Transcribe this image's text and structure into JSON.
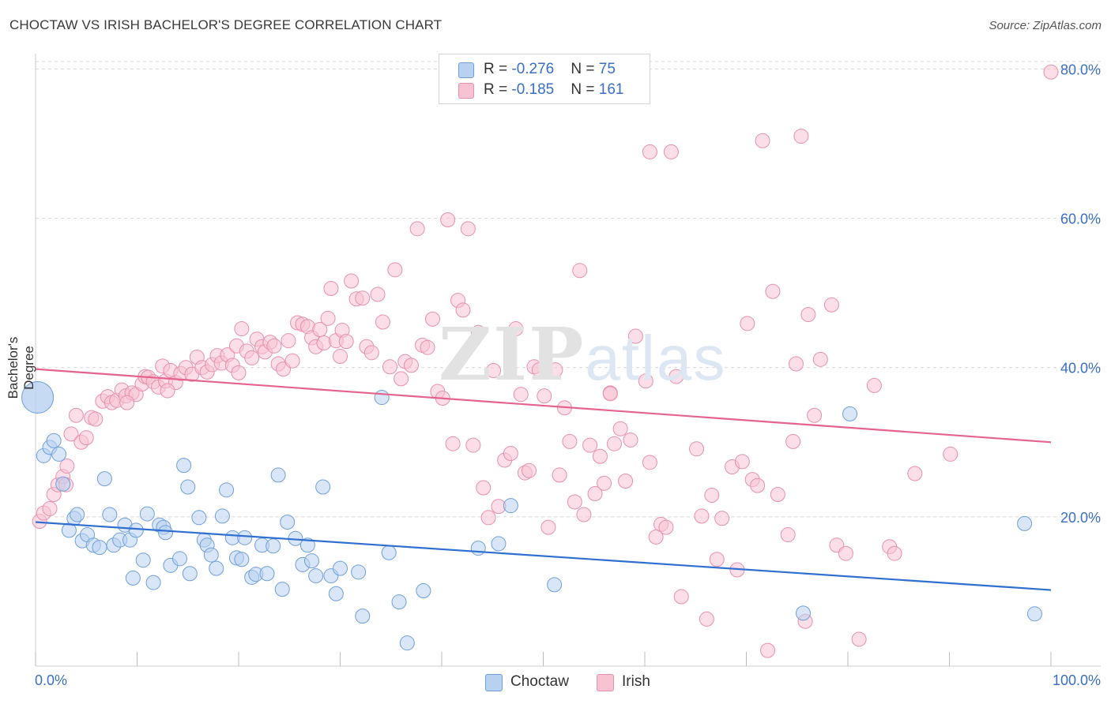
{
  "title": "CHOCTAW VS IRISH BACHELOR'S DEGREE CORRELATION CHART",
  "source": "Source: ZipAtlas.com",
  "watermark": {
    "zip": "ZIP",
    "atlas": "atlas"
  },
  "colors": {
    "choctaw_fill": "#b8d1f0",
    "choctaw_stroke": "#6f9fdb",
    "choctaw_line": "#2f6fd0",
    "irish_fill": "#f7c3d3",
    "irish_stroke": "#e690ad",
    "irish_line": "#e4648e",
    "axis_label": "#3a6fc4",
    "grid": "#d9d9d9"
  },
  "legend_top": [
    {
      "r_label": "R = ",
      "r_value": "-0.276",
      "n_label": "N = ",
      "n_value": "75"
    },
    {
      "r_label": "R = ",
      "r_value": "-0.185",
      "n_label": "N = ",
      "n_value": "161"
    }
  ],
  "legend_bottom": [
    "Choctaw",
    "Irish"
  ],
  "chart_data": {
    "type": "scatter",
    "title": "CHOCTAW VS IRISH BACHELOR'S DEGREE CORRELATION CHART",
    "xlabel": "",
    "ylabel": "Bachelor's Degree",
    "x_tick_labels": [
      "0.0%",
      "100.0%"
    ],
    "y_tick_labels": [
      "20.0%",
      "40.0%",
      "60.0%",
      "80.0%"
    ],
    "y_ticks": [
      20,
      40,
      60,
      80
    ],
    "xlim": [
      0,
      100
    ],
    "ylim": [
      0,
      81
    ],
    "grid": true,
    "series": [
      {
        "name": "Choctaw",
        "r": -0.276,
        "n": 75,
        "trend": {
          "x": [
            0,
            100
          ],
          "y": [
            19.3,
            10.2
          ]
        },
        "points": [
          [
            0.2,
            36,
            "big"
          ],
          [
            0.8,
            28.2
          ],
          [
            1.4,
            29.3
          ],
          [
            1.8,
            30.2
          ],
          [
            2.3,
            28.4
          ],
          [
            2.7,
            24.4
          ],
          [
            3.3,
            18.2
          ],
          [
            3.8,
            19.8
          ],
          [
            4.1,
            20.3
          ],
          [
            4.6,
            16.8
          ],
          [
            5.1,
            17.6
          ],
          [
            5.7,
            16.2
          ],
          [
            6.3,
            15.9
          ],
          [
            6.8,
            25.1
          ],
          [
            7.3,
            20.3
          ],
          [
            7.7,
            16.2
          ],
          [
            8.3,
            16.9
          ],
          [
            8.8,
            18.9
          ],
          [
            9.3,
            16.9
          ],
          [
            9.6,
            11.8
          ],
          [
            9.9,
            18.2
          ],
          [
            10.6,
            14.2
          ],
          [
            11.0,
            20.4
          ],
          [
            11.6,
            11.2
          ],
          [
            12.2,
            18.9
          ],
          [
            12.6,
            18.6
          ],
          [
            12.8,
            17.9
          ],
          [
            13.3,
            13.5
          ],
          [
            14.2,
            14.4
          ],
          [
            14.6,
            26.9
          ],
          [
            15.0,
            24.0
          ],
          [
            15.2,
            12.4
          ],
          [
            16.1,
            19.9
          ],
          [
            16.6,
            16.9
          ],
          [
            16.9,
            16.2
          ],
          [
            17.3,
            14.9
          ],
          [
            17.8,
            13.1
          ],
          [
            18.4,
            20.1
          ],
          [
            18.8,
            23.6
          ],
          [
            19.4,
            17.2
          ],
          [
            19.8,
            14.5
          ],
          [
            20.3,
            14.3
          ],
          [
            20.6,
            17.2
          ],
          [
            21.3,
            11.9
          ],
          [
            21.7,
            12.3
          ],
          [
            22.3,
            16.2
          ],
          [
            22.8,
            12.4
          ],
          [
            23.4,
            16.1
          ],
          [
            23.9,
            25.6
          ],
          [
            24.3,
            10.3
          ],
          [
            24.8,
            19.3
          ],
          [
            25.6,
            17.1
          ],
          [
            26.3,
            13.6
          ],
          [
            26.8,
            16.2
          ],
          [
            27.2,
            14.1
          ],
          [
            27.6,
            12.1
          ],
          [
            28.3,
            24.0
          ],
          [
            29.1,
            12.1
          ],
          [
            29.6,
            9.7
          ],
          [
            30.0,
            13.1
          ],
          [
            31.8,
            12.6
          ],
          [
            32.2,
            6.7
          ],
          [
            34.1,
            36.0
          ],
          [
            34.8,
            15.2
          ],
          [
            35.8,
            8.6
          ],
          [
            36.6,
            3.1
          ],
          [
            38.2,
            10.1
          ],
          [
            43.6,
            15.8
          ],
          [
            45.6,
            16.4
          ],
          [
            46.8,
            21.5
          ],
          [
            51.1,
            10.9
          ],
          [
            80.2,
            33.8
          ],
          [
            75.6,
            7.1
          ],
          [
            97.4,
            19.1
          ],
          [
            98.4,
            7.0
          ]
        ]
      },
      {
        "name": "Irish",
        "r": -0.185,
        "n": 161,
        "trend": {
          "x": [
            0,
            100
          ],
          "y": [
            39.8,
            30.0
          ]
        },
        "points": [
          [
            0.4,
            19.4
          ],
          [
            0.8,
            20.5
          ],
          [
            1.4,
            21.1
          ],
          [
            1.8,
            23.0
          ],
          [
            2.2,
            24.3
          ],
          [
            2.7,
            25.4
          ],
          [
            3.1,
            26.8
          ],
          [
            3.5,
            31.1
          ],
          [
            4.0,
            33.6
          ],
          [
            4.5,
            30.0
          ],
          [
            5.0,
            30.6
          ],
          [
            5.5,
            33.3
          ],
          [
            5.9,
            33.1
          ],
          [
            6.6,
            35.5
          ],
          [
            7.1,
            36.1
          ],
          [
            7.5,
            35.3
          ],
          [
            8.0,
            35.6
          ],
          [
            8.5,
            37.0
          ],
          [
            8.9,
            36.2
          ],
          [
            9.5,
            36.6
          ],
          [
            9.9,
            36.4
          ],
          [
            10.5,
            37.8
          ],
          [
            10.8,
            38.8
          ],
          [
            11.1,
            38.7
          ],
          [
            11.6,
            38.1
          ],
          [
            12.1,
            37.4
          ],
          [
            12.5,
            40.2
          ],
          [
            12.8,
            38.2
          ],
          [
            13.3,
            39.6
          ],
          [
            13.8,
            38.0
          ],
          [
            14.3,
            39.2
          ],
          [
            14.8,
            40.0
          ],
          [
            15.4,
            39.1
          ],
          [
            15.9,
            41.4
          ],
          [
            16.4,
            40.0
          ],
          [
            16.9,
            39.4
          ],
          [
            17.4,
            40.4
          ],
          [
            17.9,
            41.6
          ],
          [
            18.3,
            40.6
          ],
          [
            18.9,
            41.7
          ],
          [
            19.4,
            40.3
          ],
          [
            19.8,
            42.9
          ],
          [
            20.3,
            45.2
          ],
          [
            20.8,
            42.2
          ],
          [
            21.3,
            41.3
          ],
          [
            21.8,
            43.8
          ],
          [
            22.3,
            42.8
          ],
          [
            22.6,
            42.1
          ],
          [
            23.1,
            43.4
          ],
          [
            23.5,
            42.9
          ],
          [
            23.9,
            40.5
          ],
          [
            24.4,
            39.8
          ],
          [
            24.9,
            43.6
          ],
          [
            25.3,
            40.9
          ],
          [
            25.8,
            46.0
          ],
          [
            26.3,
            45.8
          ],
          [
            26.8,
            45.5
          ],
          [
            27.2,
            44.0
          ],
          [
            27.6,
            42.8
          ],
          [
            28.0,
            45.1
          ],
          [
            28.4,
            43.3
          ],
          [
            28.8,
            46.6
          ],
          [
            29.1,
            50.6
          ],
          [
            29.6,
            43.6
          ],
          [
            30.2,
            45.0
          ],
          [
            30.6,
            43.5
          ],
          [
            31.1,
            51.6
          ],
          [
            31.6,
            49.2
          ],
          [
            32.2,
            49.3
          ],
          [
            32.6,
            42.8
          ],
          [
            33.1,
            42.0
          ],
          [
            33.7,
            49.8
          ],
          [
            34.2,
            46.1
          ],
          [
            34.9,
            40.1
          ],
          [
            35.4,
            53.1
          ],
          [
            36.0,
            38.5
          ],
          [
            36.4,
            40.8
          ],
          [
            37.0,
            40.3
          ],
          [
            37.6,
            58.6
          ],
          [
            38.1,
            43.0
          ],
          [
            38.6,
            42.7
          ],
          [
            39.1,
            46.5
          ],
          [
            39.6,
            36.8
          ],
          [
            40.1,
            35.9
          ],
          [
            40.6,
            59.8
          ],
          [
            41.1,
            29.8
          ],
          [
            41.6,
            49.0
          ],
          [
            42.1,
            47.7
          ],
          [
            42.6,
            58.6
          ],
          [
            43.1,
            29.6
          ],
          [
            43.6,
            44.7
          ],
          [
            44.1,
            23.9
          ],
          [
            44.6,
            19.9
          ],
          [
            45.1,
            39.6
          ],
          [
            45.6,
            21.4
          ],
          [
            46.2,
            27.6
          ],
          [
            46.8,
            28.5
          ],
          [
            47.3,
            45.2
          ],
          [
            47.8,
            36.4
          ],
          [
            48.2,
            25.9
          ],
          [
            48.6,
            26.2
          ],
          [
            49.1,
            40.1
          ],
          [
            49.6,
            39.7
          ],
          [
            50.1,
            36.2
          ],
          [
            50.5,
            18.6
          ],
          [
            51.2,
            39.7
          ],
          [
            51.6,
            25.6
          ],
          [
            52.1,
            34.6
          ],
          [
            52.6,
            30.1
          ],
          [
            53.1,
            22.0
          ],
          [
            53.6,
            53.0
          ],
          [
            54.0,
            20.3
          ],
          [
            54.6,
            29.6
          ],
          [
            55.1,
            23.1
          ],
          [
            55.6,
            28.1
          ],
          [
            56.0,
            24.5
          ],
          [
            56.6,
            36.6
          ],
          [
            57.0,
            29.8
          ],
          [
            57.6,
            31.8
          ],
          [
            58.1,
            24.8
          ],
          [
            58.6,
            30.3
          ],
          [
            59.1,
            44.2
          ],
          [
            60.1,
            38.2
          ],
          [
            60.5,
            27.3
          ],
          [
            60.5,
            68.9
          ],
          [
            61.1,
            17.3
          ],
          [
            61.6,
            19.0
          ],
          [
            62.1,
            18.6
          ],
          [
            62.6,
            68.9
          ],
          [
            63.1,
            38.8
          ],
          [
            63.6,
            9.3
          ],
          [
            65.1,
            29.1
          ],
          [
            65.6,
            20.1
          ],
          [
            66.1,
            6.3
          ],
          [
            66.6,
            22.9
          ],
          [
            67.1,
            14.3
          ],
          [
            67.6,
            19.8
          ],
          [
            68.6,
            26.7
          ],
          [
            69.1,
            12.9
          ],
          [
            69.6,
            27.4
          ],
          [
            70.1,
            45.9
          ],
          [
            70.6,
            25.0
          ],
          [
            71.1,
            24.2
          ],
          [
            71.6,
            70.4
          ],
          [
            72.1,
            2.1
          ],
          [
            72.6,
            50.2
          ],
          [
            73.1,
            23.0
          ],
          [
            74.1,
            17.6
          ],
          [
            74.6,
            30.1
          ],
          [
            74.9,
            40.5
          ],
          [
            75.4,
            71.0
          ],
          [
            75.8,
            6.0
          ],
          [
            76.1,
            47.1
          ],
          [
            76.7,
            33.6
          ],
          [
            77.3,
            41.1
          ],
          [
            78.4,
            48.4
          ],
          [
            78.9,
            16.2
          ],
          [
            79.8,
            15.1
          ],
          [
            81.1,
            3.6
          ],
          [
            82.6,
            37.6
          ],
          [
            84.1,
            16.0
          ],
          [
            84.6,
            15.1
          ],
          [
            86.6,
            25.8
          ],
          [
            90.1,
            28.4
          ],
          [
            100.0,
            79.6
          ],
          [
            56.6,
            36.5
          ],
          [
            30.0,
            41.5
          ],
          [
            20.0,
            39.3
          ],
          [
            13.0,
            36.9
          ],
          [
            9.0,
            35.3
          ],
          [
            3.0,
            24.3
          ]
        ]
      }
    ]
  }
}
